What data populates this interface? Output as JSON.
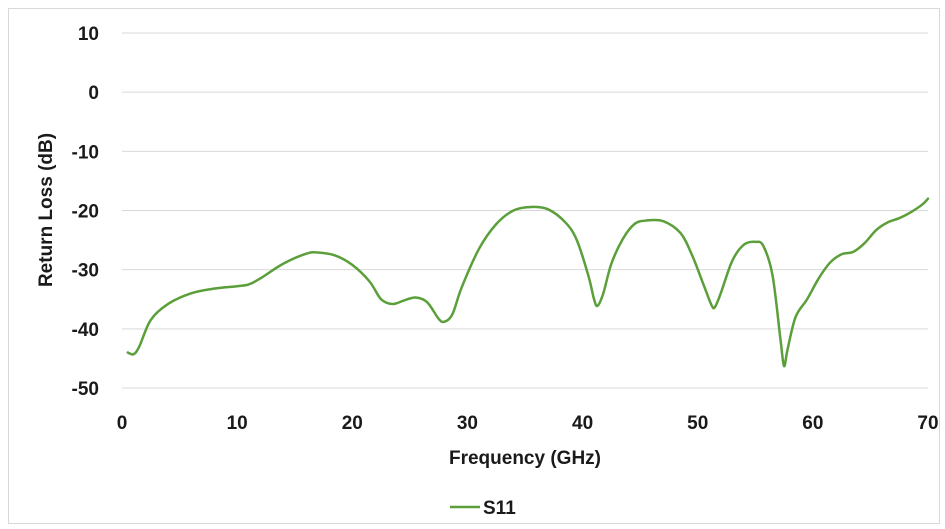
{
  "chart_data": {
    "type": "line",
    "title": "",
    "xlabel": "Frequency (GHz)",
    "ylabel": "Return Loss (dB)",
    "xlim": [
      0,
      70
    ],
    "ylim": [
      -50,
      10
    ],
    "xticks": [
      0,
      10,
      20,
      30,
      40,
      50,
      60,
      70
    ],
    "yticks": [
      10,
      0,
      -10,
      -20,
      -30,
      -40,
      -50
    ],
    "grid": "horizontal",
    "legend_position": "bottom-center",
    "series": [
      {
        "name": "S11",
        "color": "#5b9f3a",
        "points": [
          [
            0.5,
            -44.0
          ],
          [
            1.0,
            -44.3
          ],
          [
            1.5,
            -43.0
          ],
          [
            2.5,
            -38.5
          ],
          [
            4,
            -35.8
          ],
          [
            6,
            -34.0
          ],
          [
            8,
            -33.2
          ],
          [
            10,
            -32.8
          ],
          [
            11,
            -32.5
          ],
          [
            12,
            -31.5
          ],
          [
            14,
            -29.0
          ],
          [
            16,
            -27.3
          ],
          [
            17,
            -27.1
          ],
          [
            18.5,
            -27.6
          ],
          [
            20,
            -29.2
          ],
          [
            21.5,
            -32.0
          ],
          [
            22.5,
            -35.0
          ],
          [
            23.5,
            -35.8
          ],
          [
            24.5,
            -35.2
          ],
          [
            25.5,
            -34.7
          ],
          [
            26.5,
            -35.5
          ],
          [
            27.5,
            -38.3
          ],
          [
            28,
            -38.8
          ],
          [
            28.7,
            -37.5
          ],
          [
            29.5,
            -33.0
          ],
          [
            31,
            -26.5
          ],
          [
            32.5,
            -22.3
          ],
          [
            34,
            -20.0
          ],
          [
            35.5,
            -19.4
          ],
          [
            37,
            -19.8
          ],
          [
            38.5,
            -22.0
          ],
          [
            39.5,
            -25.0
          ],
          [
            40.5,
            -31.0
          ],
          [
            41,
            -35.0
          ],
          [
            41.3,
            -36.1
          ],
          [
            41.8,
            -34.0
          ],
          [
            42.5,
            -29.0
          ],
          [
            43.5,
            -24.8
          ],
          [
            44.5,
            -22.3
          ],
          [
            45.5,
            -21.7
          ],
          [
            47,
            -21.8
          ],
          [
            48.5,
            -23.8
          ],
          [
            49.5,
            -27.5
          ],
          [
            50.5,
            -32.5
          ],
          [
            51.2,
            -36.0
          ],
          [
            51.5,
            -36.3
          ],
          [
            52,
            -34.0
          ],
          [
            53,
            -28.5
          ],
          [
            54,
            -25.8
          ],
          [
            55,
            -25.3
          ],
          [
            55.7,
            -26.0
          ],
          [
            56.5,
            -31.0
          ],
          [
            57.2,
            -42.0
          ],
          [
            57.5,
            -46.3
          ],
          [
            57.8,
            -43.5
          ],
          [
            58.5,
            -38.0
          ],
          [
            59.5,
            -35.0
          ],
          [
            60.5,
            -31.5
          ],
          [
            61.5,
            -28.8
          ],
          [
            62.5,
            -27.4
          ],
          [
            63.5,
            -27.0
          ],
          [
            64.5,
            -25.5
          ],
          [
            65.5,
            -23.3
          ],
          [
            66.5,
            -22.0
          ],
          [
            67.5,
            -21.3
          ],
          [
            68.5,
            -20.3
          ],
          [
            69.5,
            -19.0
          ],
          [
            70,
            -18.0
          ]
        ]
      }
    ]
  }
}
